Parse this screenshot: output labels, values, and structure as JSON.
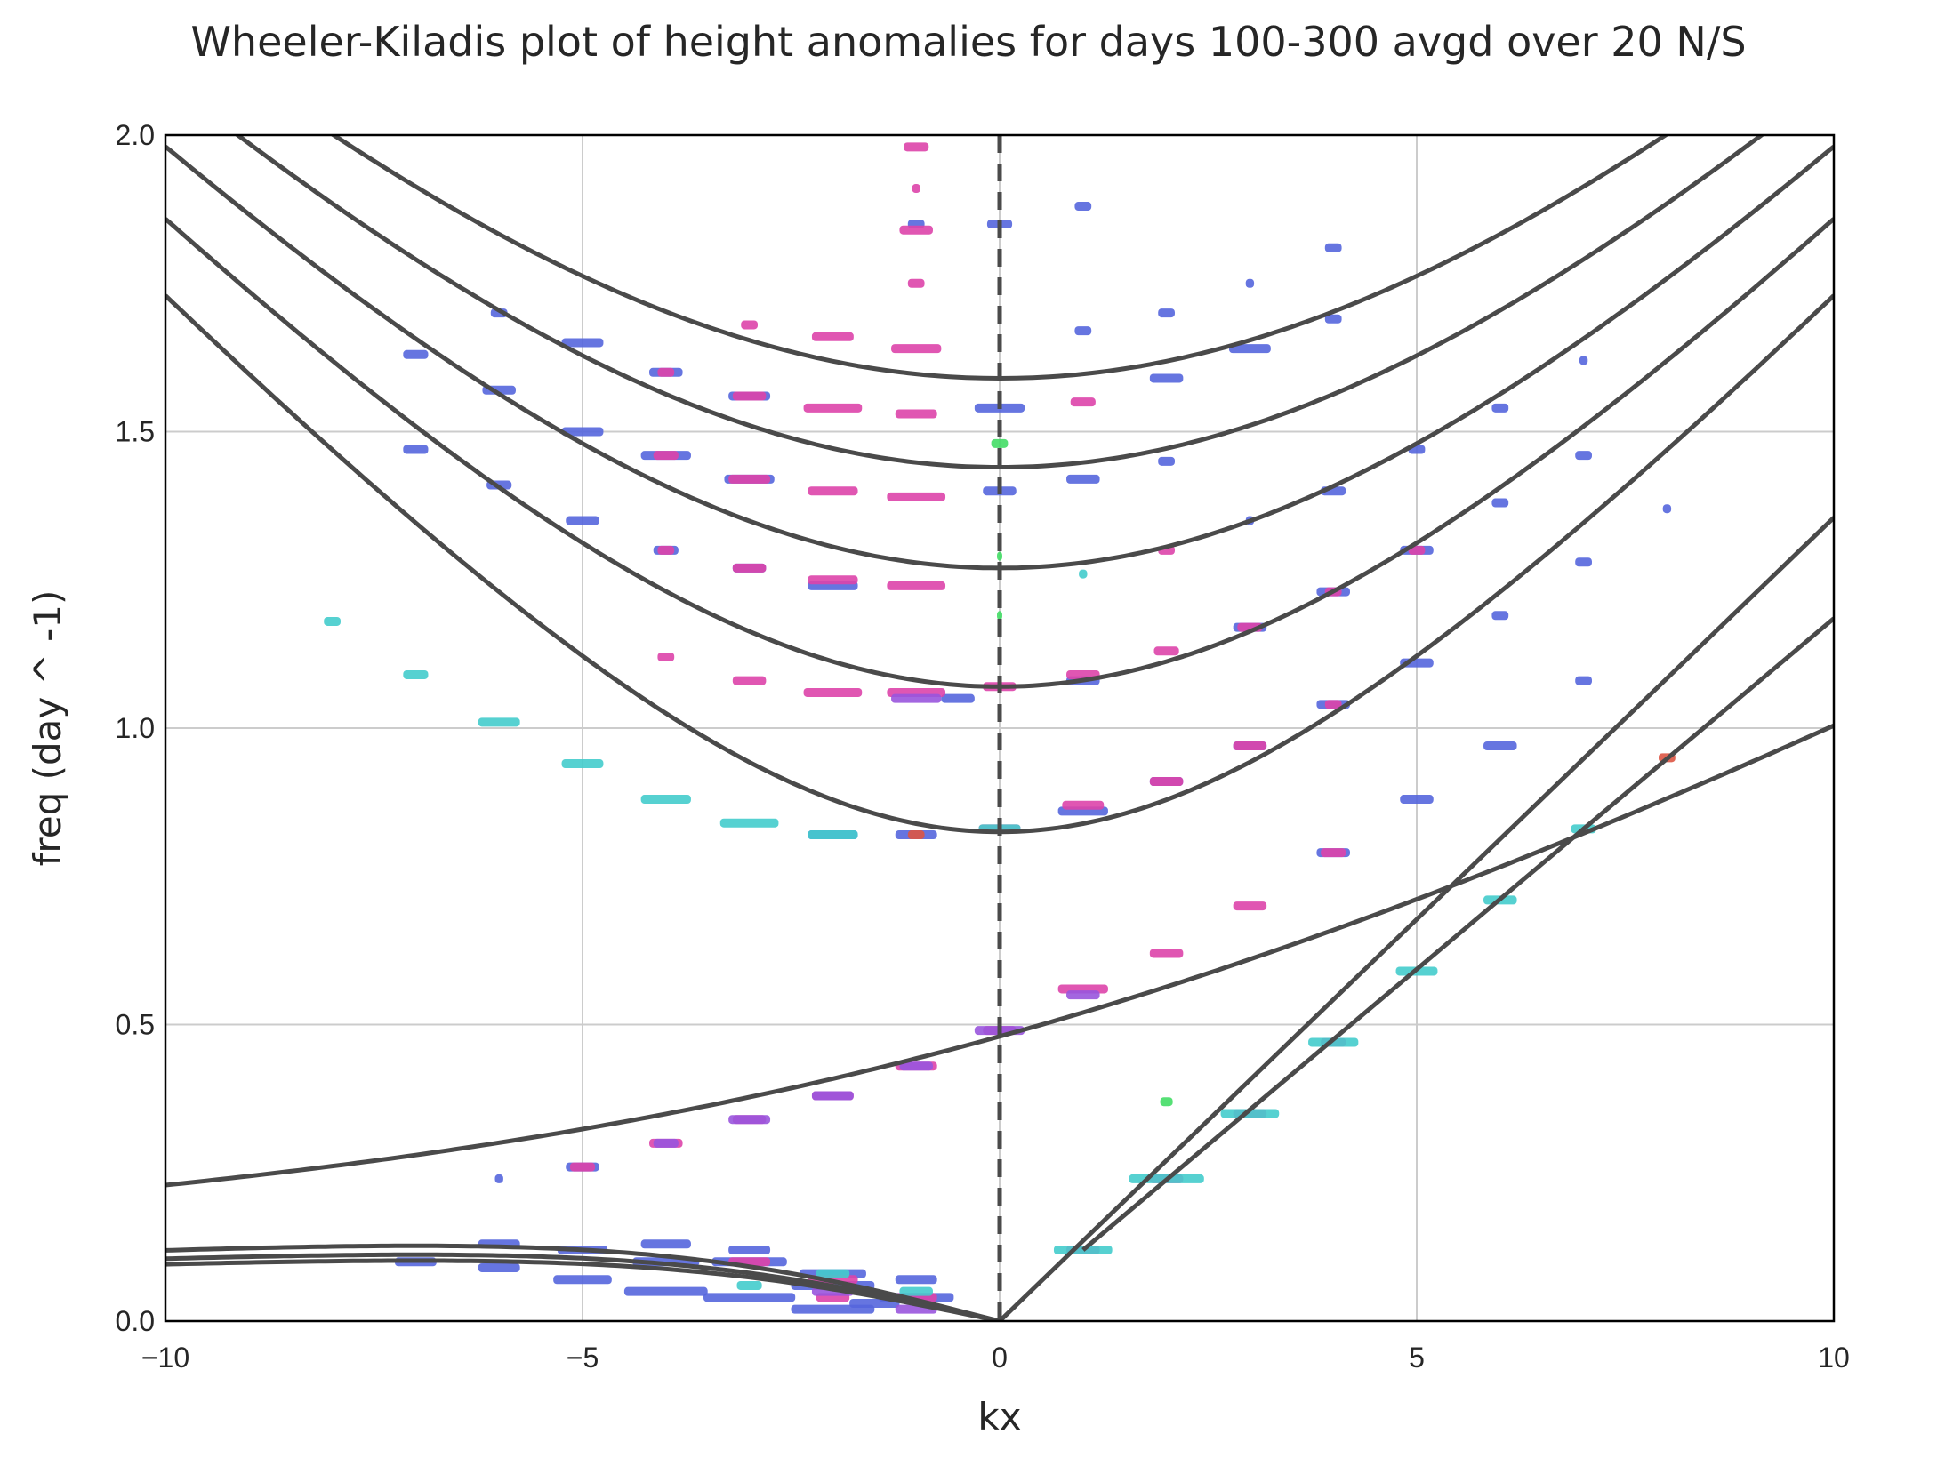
{
  "chart_data": {
    "type": "scatter",
    "title": "Wheeler-Kiladis plot of height anomalies for days 100-300 avgd over 20 N/S",
    "xlabel": "kx",
    "ylabel": "freq (day ^ -1)",
    "xlim": [
      -10,
      10
    ],
    "ylim": [
      0,
      2.0
    ],
    "xticks": [
      -10,
      -5,
      0,
      5,
      10
    ],
    "xtick_labels": [
      "−10",
      "−5",
      "0",
      "5",
      "10"
    ],
    "yticks": [
      0.0,
      0.5,
      1.0,
      1.5,
      2.0
    ],
    "ytick_labels": [
      "0.0",
      "0.5",
      "1.0",
      "1.5",
      "2.0"
    ],
    "grid": true,
    "colors": {
      "curve": "#4a4a4a",
      "blue": "#5566dd",
      "magenta": "#dd44aa",
      "cyan": "#44cccc",
      "purple": "#9955dd",
      "green": "#44dd66",
      "red": "#dd5544"
    },
    "dispersion_curves": {
      "inertia_gravity": [
        {
          "omega0": 0.825,
          "c": 0.152
        },
        {
          "omega0": 1.07,
          "c": 0.152
        },
        {
          "omega0": 1.27,
          "c": 0.152
        },
        {
          "omega0": 1.44,
          "c": 0.152
        },
        {
          "omega0": 1.59,
          "c": 0.152
        }
      ],
      "mixed_rossby_gravity": {
        "omega_at_0": 0.48,
        "c": 0.0775,
        "k_min": -10,
        "k_max": 10
      },
      "kelvin": [
        {
          "kx": [
            0,
            10
          ],
          "freq": [
            0,
            1.355
          ]
        },
        {
          "kx": [
            1,
            10
          ],
          "freq": [
            0.12,
            1.185
          ]
        }
      ],
      "rossby": [
        {
          "n": 1,
          "scale": 0.127
        },
        {
          "n": 2,
          "scale": 0.112
        },
        {
          "n": 3,
          "scale": 0.102
        }
      ],
      "zero_line_x": 0
    },
    "series": [
      {
        "color": "blue",
        "points": [
          [
            -6,
            1.7,
            0.2
          ],
          [
            -7,
            1.63,
            0.3
          ],
          [
            -5,
            1.65,
            0.5
          ],
          [
            -4,
            1.6,
            0.4
          ],
          [
            -6,
            1.57,
            0.4
          ],
          [
            -3,
            1.56,
            0.5
          ],
          [
            -5,
            1.5,
            0.5
          ],
          [
            -4,
            1.46,
            0.6
          ],
          [
            -3,
            1.42,
            0.6
          ],
          [
            -6,
            1.41,
            0.3
          ],
          [
            -5,
            1.35,
            0.4
          ],
          [
            -4,
            1.3,
            0.3
          ],
          [
            -3,
            1.27,
            0.4
          ],
          [
            -2,
            1.24,
            0.6
          ],
          [
            -7,
            1.47,
            0.3
          ],
          [
            0,
            1.85,
            0.3
          ],
          [
            -1,
            1.85,
            0.2
          ],
          [
            1,
            1.88,
            0.2
          ],
          [
            2,
            1.7,
            0.2
          ],
          [
            3,
            1.64,
            0.5
          ],
          [
            2,
            1.59,
            0.4
          ],
          [
            1,
            1.67,
            0.2
          ],
          [
            4,
            1.69,
            0.2
          ],
          [
            4,
            1.81,
            0.2
          ],
          [
            3,
            1.75,
            0.1
          ],
          [
            7,
            1.62,
            0.1
          ],
          [
            6,
            1.54,
            0.2
          ],
          [
            5,
            1.47,
            0.2
          ],
          [
            7,
            1.46,
            0.2
          ],
          [
            4,
            1.4,
            0.3
          ],
          [
            6,
            1.38,
            0.2
          ],
          [
            8,
            1.37,
            0.1
          ],
          [
            5,
            1.3,
            0.4
          ],
          [
            4,
            1.23,
            0.4
          ],
          [
            7,
            1.28,
            0.2
          ],
          [
            3,
            1.17,
            0.4
          ],
          [
            6,
            1.19,
            0.2
          ],
          [
            5,
            1.11,
            0.4
          ],
          [
            4,
            1.04,
            0.4
          ],
          [
            7,
            1.08,
            0.2
          ],
          [
            6,
            0.97,
            0.4
          ],
          [
            5,
            0.88,
            0.4
          ],
          [
            4,
            0.79,
            0.4
          ],
          [
            1,
            1.42,
            0.4
          ],
          [
            2,
            1.45,
            0.2
          ],
          [
            3,
            1.35,
            0.1
          ],
          [
            0,
            1.54,
            0.6
          ],
          [
            0,
            1.4,
            0.4
          ],
          [
            -2,
            0.82,
            0.6
          ],
          [
            -1,
            0.82,
            0.5
          ],
          [
            1,
            1.08,
            0.4
          ],
          [
            2,
            0.91,
            0.4
          ],
          [
            3,
            0.97,
            0.4
          ],
          [
            1,
            0.86,
            0.6
          ],
          [
            -0.5,
            1.05,
            0.4
          ],
          [
            -6,
            0.24,
            0.1
          ],
          [
            -5,
            0.26,
            0.4
          ],
          [
            -7,
            0.1,
            0.5
          ],
          [
            -6,
            0.09,
            0.5
          ],
          [
            -5,
            0.12,
            0.6
          ],
          [
            -4,
            0.1,
            0.8
          ],
          [
            -3,
            0.1,
            0.9
          ],
          [
            -5,
            0.07,
            0.7
          ],
          [
            -4,
            0.05,
            1.0
          ],
          [
            -3,
            0.04,
            1.1
          ],
          [
            -2,
            0.06,
            1.0
          ],
          [
            -1,
            0.04,
            0.9
          ],
          [
            -2,
            0.02,
            1.0
          ],
          [
            -6,
            0.13,
            0.5
          ],
          [
            -4,
            0.13,
            0.6
          ],
          [
            -3,
            0.12,
            0.5
          ],
          [
            -2,
            0.08,
            0.8
          ],
          [
            -1.5,
            0.03,
            0.6
          ],
          [
            -1,
            0.07,
            0.5
          ]
        ]
      },
      {
        "color": "magenta",
        "points": [
          [
            -1,
            1.98,
            0.3
          ],
          [
            -1,
            1.91,
            0.1
          ],
          [
            -1,
            1.84,
            0.4
          ],
          [
            -1,
            1.75,
            0.2
          ],
          [
            -3,
            1.68,
            0.2
          ],
          [
            -2,
            1.66,
            0.5
          ],
          [
            -1,
            1.64,
            0.6
          ],
          [
            -4,
            1.6,
            0.2
          ],
          [
            -3,
            1.56,
            0.4
          ],
          [
            -2,
            1.54,
            0.7
          ],
          [
            -1,
            1.53,
            0.5
          ],
          [
            -4,
            1.46,
            0.3
          ],
          [
            -3,
            1.42,
            0.5
          ],
          [
            -2,
            1.4,
            0.6
          ],
          [
            -1,
            1.39,
            0.7
          ],
          [
            -4,
            1.3,
            0.2
          ],
          [
            -3,
            1.27,
            0.4
          ],
          [
            -2,
            1.25,
            0.6
          ],
          [
            -1,
            1.24,
            0.7
          ],
          [
            -4,
            1.12,
            0.2
          ],
          [
            -3,
            1.08,
            0.4
          ],
          [
            -2,
            1.06,
            0.7
          ],
          [
            -1,
            1.06,
            0.7
          ],
          [
            0,
            1.07,
            0.4
          ],
          [
            1,
            1.55,
            0.3
          ],
          [
            1,
            1.09,
            0.4
          ],
          [
            2,
            1.13,
            0.3
          ],
          [
            2,
            1.3,
            0.2
          ],
          [
            3,
            0.97,
            0.4
          ],
          [
            2,
            0.91,
            0.4
          ],
          [
            1,
            0.87,
            0.5
          ],
          [
            0,
            0.83,
            0.5
          ],
          [
            4,
            1.04,
            0.2
          ],
          [
            4,
            0.79,
            0.3
          ],
          [
            3,
            0.7,
            0.4
          ],
          [
            2,
            0.62,
            0.4
          ],
          [
            1,
            0.56,
            0.6
          ],
          [
            0,
            0.49,
            0.4
          ],
          [
            -1,
            0.43,
            0.5
          ],
          [
            -2,
            0.38,
            0.5
          ],
          [
            -3,
            0.34,
            0.4
          ],
          [
            -4,
            0.3,
            0.4
          ],
          [
            -5,
            0.26,
            0.3
          ],
          [
            4,
            0.47,
            0.3
          ],
          [
            3,
            0.35,
            0.4
          ],
          [
            2,
            0.24,
            0.4
          ],
          [
            1,
            0.12,
            0.4
          ],
          [
            -3,
            0.1,
            0.5
          ],
          [
            -2,
            0.07,
            0.6
          ],
          [
            -1,
            0.04,
            0.5
          ],
          [
            -2,
            0.04,
            0.4
          ],
          [
            3,
            1.17,
            0.3
          ],
          [
            4,
            1.23,
            0.2
          ],
          [
            5,
            1.3,
            0.2
          ]
        ]
      },
      {
        "color": "cyan",
        "points": [
          [
            -8,
            1.18,
            0.2
          ],
          [
            -7,
            1.09,
            0.3
          ],
          [
            -6,
            1.01,
            0.5
          ],
          [
            -5,
            0.94,
            0.5
          ],
          [
            -4,
            0.88,
            0.6
          ],
          [
            -3,
            0.84,
            0.7
          ],
          [
            -2,
            0.82,
            0.6
          ],
          [
            0,
            0.83,
            0.5
          ],
          [
            1,
            1.26,
            0.1
          ],
          [
            7,
            0.83,
            0.3
          ],
          [
            6,
            0.71,
            0.4
          ],
          [
            5,
            0.59,
            0.5
          ],
          [
            4,
            0.47,
            0.6
          ],
          [
            3,
            0.35,
            0.7
          ],
          [
            2,
            0.24,
            0.9
          ],
          [
            1,
            0.12,
            0.7
          ],
          [
            -1,
            0.05,
            0.4
          ],
          [
            -2,
            0.08,
            0.4
          ],
          [
            -3,
            0.06,
            0.3
          ]
        ]
      },
      {
        "color": "purple",
        "points": [
          [
            0,
            0.49,
            0.6
          ],
          [
            -1,
            0.43,
            0.4
          ],
          [
            -2,
            0.38,
            0.5
          ],
          [
            -3,
            0.34,
            0.5
          ],
          [
            -4,
            0.3,
            0.3
          ],
          [
            -1,
            1.05,
            0.6
          ],
          [
            1,
            0.55,
            0.4
          ],
          [
            -1,
            0.02,
            0.5
          ],
          [
            -2,
            0.05,
            0.5
          ]
        ]
      },
      {
        "color": "green",
        "points": [
          [
            0,
            1.48,
            0.2
          ],
          [
            0,
            1.29,
            0.05
          ],
          [
            2,
            0.37,
            0.15
          ],
          [
            0,
            1.19,
            0.05
          ]
        ]
      },
      {
        "color": "red",
        "points": [
          [
            8,
            0.95,
            0.2
          ],
          [
            -1,
            0.82,
            0.2
          ]
        ]
      }
    ]
  }
}
